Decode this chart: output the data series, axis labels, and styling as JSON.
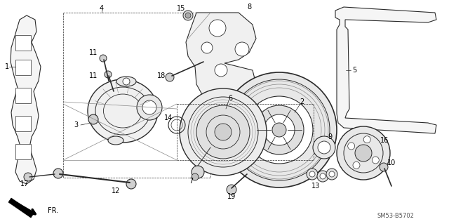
{
  "background_color": "#ffffff",
  "diagram_code": "SM53-B5702",
  "fr_label": "FR.",
  "lw_main": 1.0,
  "lw_thin": 0.6,
  "color_line": "#2a2a2a",
  "color_gray": "#888888"
}
